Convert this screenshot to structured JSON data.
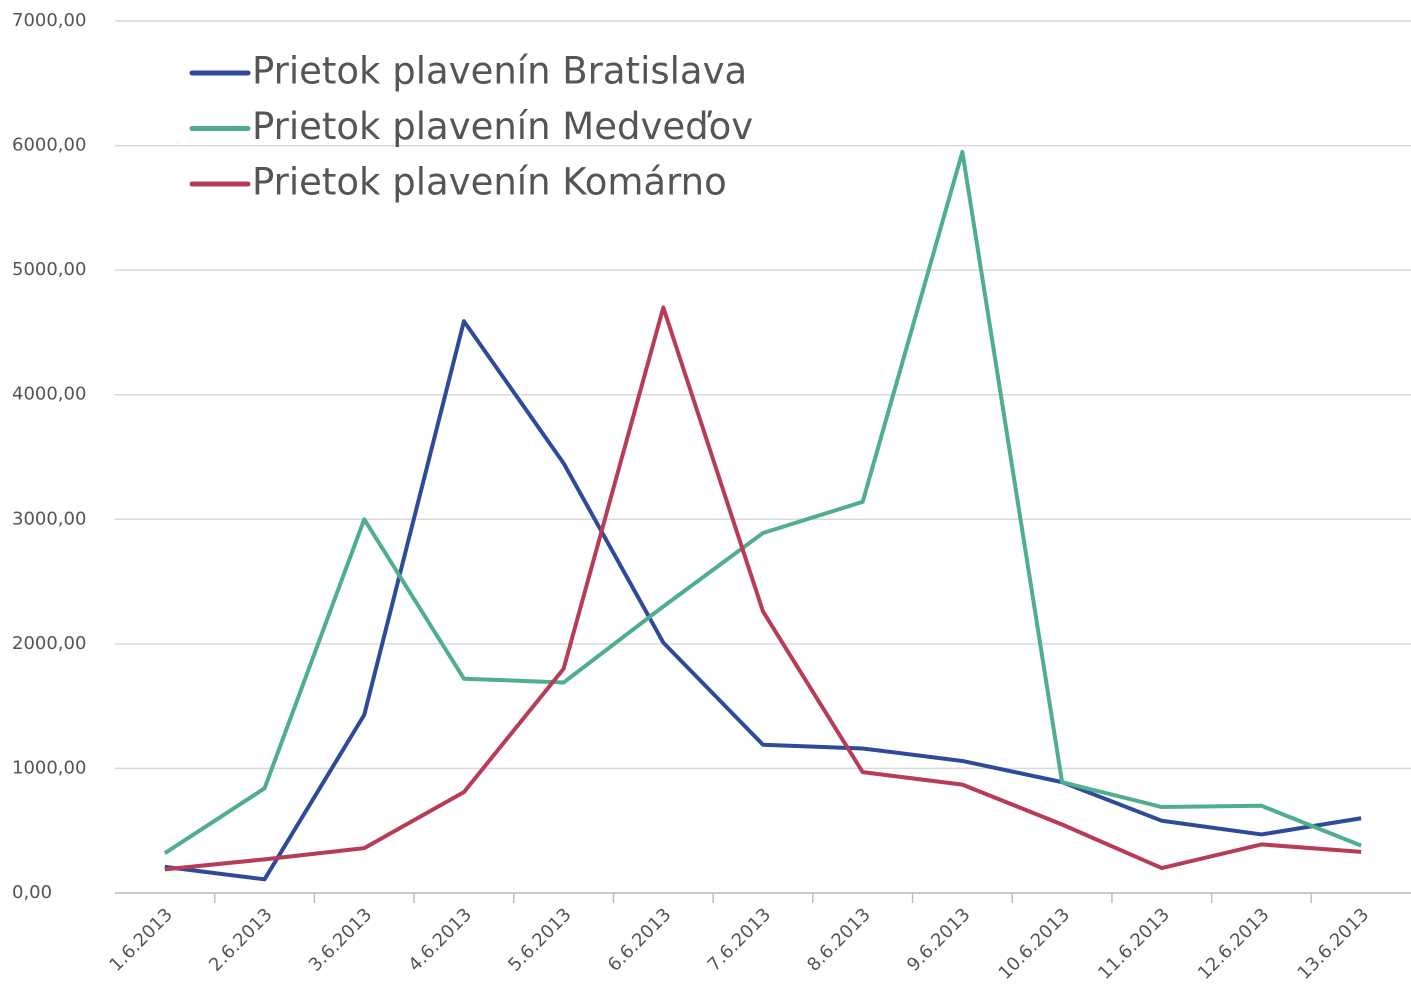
{
  "chart_data": {
    "type": "line",
    "categories": [
      "1.6.2013",
      "2.6.2013",
      "3.6.2013",
      "4.6.2013",
      "5.6.2013",
      "6.6.2013",
      "7.6.2013",
      "8.6.2013",
      "9.6.2013",
      "10.6.2013",
      "11.6.2013",
      "12.6.2013",
      "13.6.2013"
    ],
    "series": [
      {
        "name": "Prietok plavenín Bratislava",
        "color": "#2e4a9a",
        "values": [
          210,
          110,
          1430,
          4590,
          3450,
          2010,
          1190,
          1160,
          1060,
          890,
          580,
          470,
          600
        ]
      },
      {
        "name": "Prietok plavenín Medveďov",
        "color": "#4fae8c",
        "values": [
          320,
          840,
          3000,
          1720,
          1690,
          2300,
          2890,
          3140,
          5950,
          890,
          690,
          700,
          380
        ]
      },
      {
        "name": "Prietok plavenín Komárno",
        "color": "#b83c55",
        "values": [
          190,
          270,
          360,
          810,
          1800,
          4700,
          2260,
          970,
          870,
          550,
          200,
          390,
          330
        ]
      }
    ],
    "ylim": [
      0,
      7000
    ],
    "yticks": [
      {
        "value": 0,
        "label": "0,00"
      },
      {
        "value": 1000,
        "label": "1000,00"
      },
      {
        "value": 2000,
        "label": "2000,00"
      },
      {
        "value": 3000,
        "label": "3000,00"
      },
      {
        "value": 4000,
        "label": "4000,00"
      },
      {
        "value": 5000,
        "label": "5000,00"
      },
      {
        "value": 6000,
        "label": "6000,00"
      },
      {
        "value": 7000,
        "label": "7000,00"
      }
    ],
    "grid": true,
    "legend": "top-left"
  }
}
